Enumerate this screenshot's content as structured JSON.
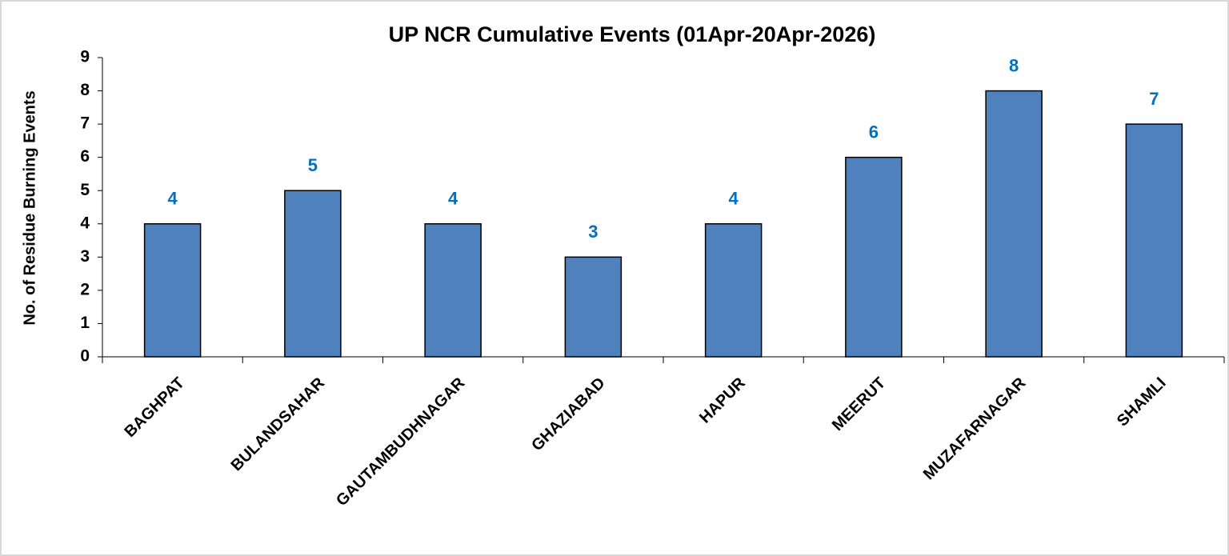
{
  "chart_data": {
    "type": "bar",
    "title": "UP NCR Cumulative Events (01Apr-20Apr-2026)",
    "y_label": "No. of Residue Burning Events",
    "categories": [
      "BAGHPAT",
      "BULANDSAHAR",
      "GAUTAMBUDHNAGAR",
      "GHAZIABAD",
      "HAPUR",
      "MEERUT",
      "MUZAFARNAGAR",
      "SHAMLI"
    ],
    "values": [
      4,
      5,
      4,
      3,
      4,
      6,
      8,
      7
    ],
    "color": "#4f81bd",
    "label_color": "#0070c0",
    "ylim": [
      0,
      9
    ],
    "yticks": [
      0,
      1,
      2,
      3,
      4,
      5,
      6,
      7,
      8,
      9
    ],
    "grid": false
  }
}
